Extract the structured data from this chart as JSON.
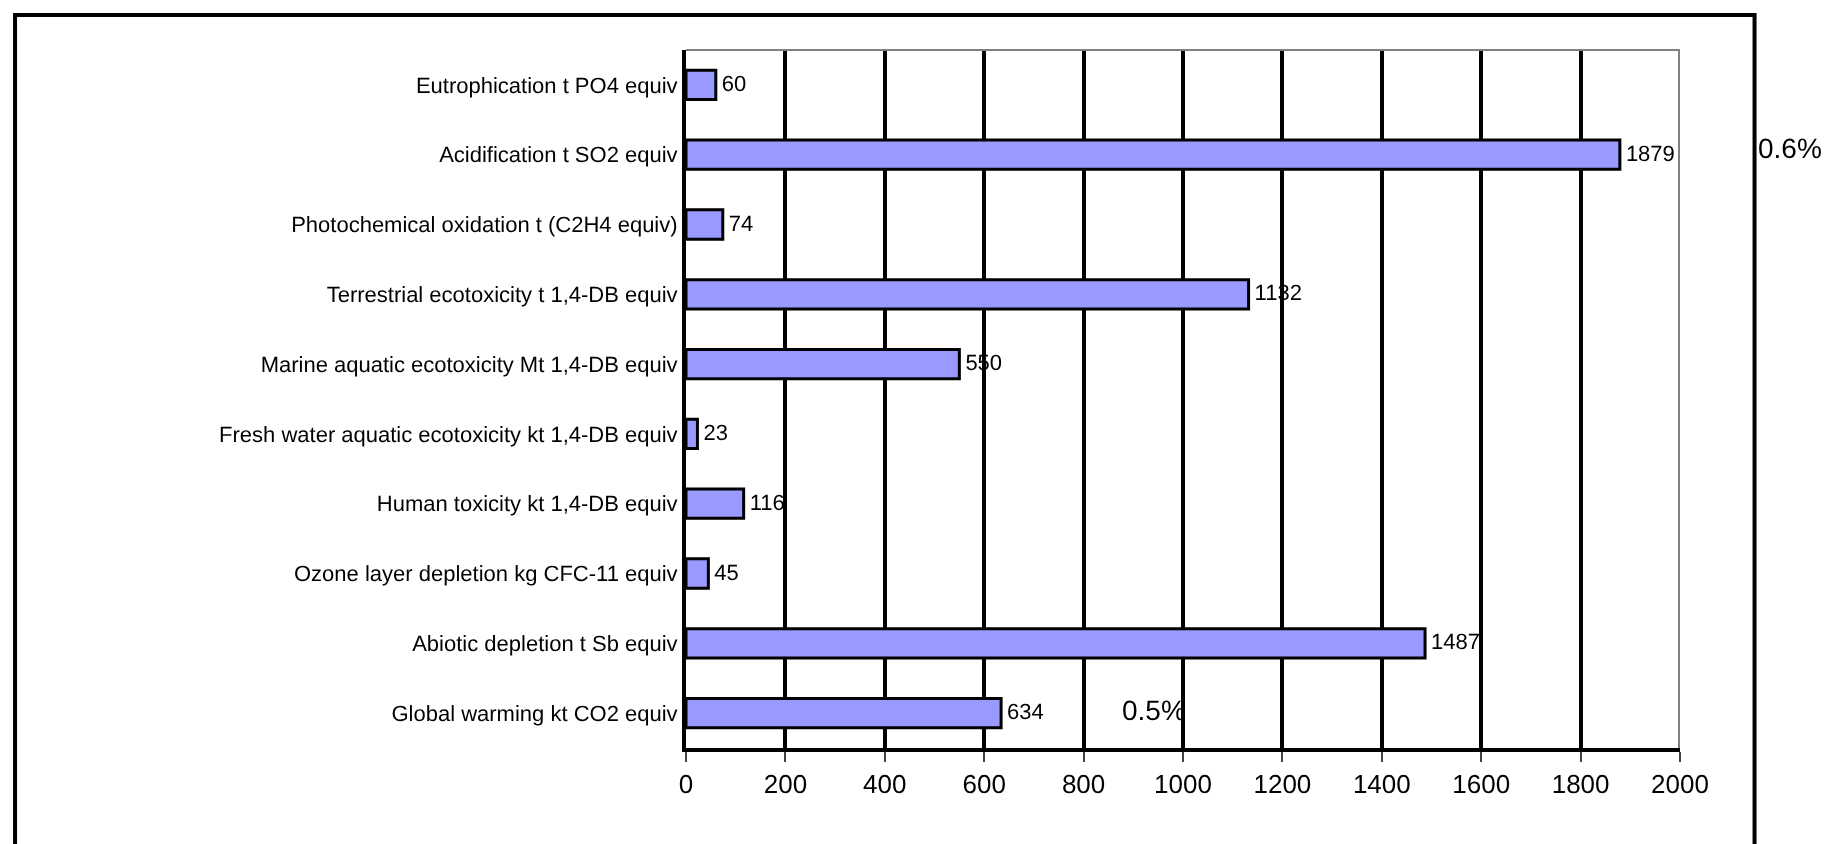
{
  "chart_data": {
    "type": "bar",
    "orientation": "horizontal",
    "categories": [
      "Eutrophication t PO4 equiv",
      "Acidification t SO2 equiv",
      "Photochemical oxidation t (C2H4 equiv)",
      "Terrestrial ecotoxicity t 1,4-DB equiv",
      "Marine aquatic ecotoxicity Mt 1,4-DB equiv",
      "Fresh water aquatic ecotoxicity kt 1,4-DB equiv",
      "Human toxicity kt 1,4-DB equiv",
      "Ozone layer depletion kg CFC-11 equiv",
      "Abiotic depletion t Sb equiv",
      "Global warming kt CO2 equiv"
    ],
    "values": [
      60,
      1879,
      74,
      1132,
      550,
      23,
      116,
      45,
      1487,
      634
    ],
    "color": "#9999ff",
    "xlim": [
      0,
      2000
    ],
    "xticks": [
      0,
      200,
      400,
      600,
      800,
      1000,
      1200,
      1400,
      1600,
      1800,
      2000
    ],
    "grid": "x",
    "data_labels": true,
    "legend": false,
    "annotations": [
      "0.6%",
      "0.5%"
    ]
  }
}
